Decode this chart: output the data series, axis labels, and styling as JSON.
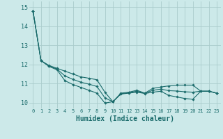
{
  "xlabel": "Humidex (Indice chaleur)",
  "background_color": "#cce9e9",
  "grid_color": "#aacccc",
  "line_color": "#1a6b6b",
  "xlim": [
    -0.5,
    23.5
  ],
  "ylim": [
    9.7,
    15.3
  ],
  "yticks": [
    10,
    11,
    12,
    13,
    14,
    15
  ],
  "xticks": [
    0,
    1,
    2,
    3,
    4,
    5,
    6,
    7,
    8,
    9,
    10,
    11,
    12,
    13,
    14,
    15,
    16,
    17,
    18,
    19,
    20,
    21,
    22,
    23
  ],
  "series": [
    [
      14.8,
      12.2,
      11.95,
      11.8,
      11.65,
      11.5,
      11.35,
      11.28,
      11.2,
      10.55,
      10.05,
      10.5,
      10.55,
      10.65,
      10.5,
      10.75,
      10.82,
      10.88,
      10.92,
      10.92,
      10.92,
      10.6,
      10.6,
      10.5
    ],
    [
      14.8,
      12.2,
      11.9,
      11.72,
      11.15,
      10.95,
      10.8,
      10.65,
      10.5,
      9.98,
      10.05,
      10.45,
      10.5,
      10.55,
      10.48,
      10.55,
      10.6,
      10.38,
      10.3,
      10.22,
      10.18,
      10.6,
      10.6,
      10.5
    ],
    [
      14.8,
      12.2,
      11.92,
      11.76,
      11.4,
      11.22,
      11.07,
      10.97,
      10.85,
      10.25,
      10.05,
      10.47,
      10.52,
      10.6,
      10.49,
      10.65,
      10.71,
      10.63,
      10.61,
      10.57,
      10.55,
      10.6,
      10.6,
      10.5
    ]
  ]
}
